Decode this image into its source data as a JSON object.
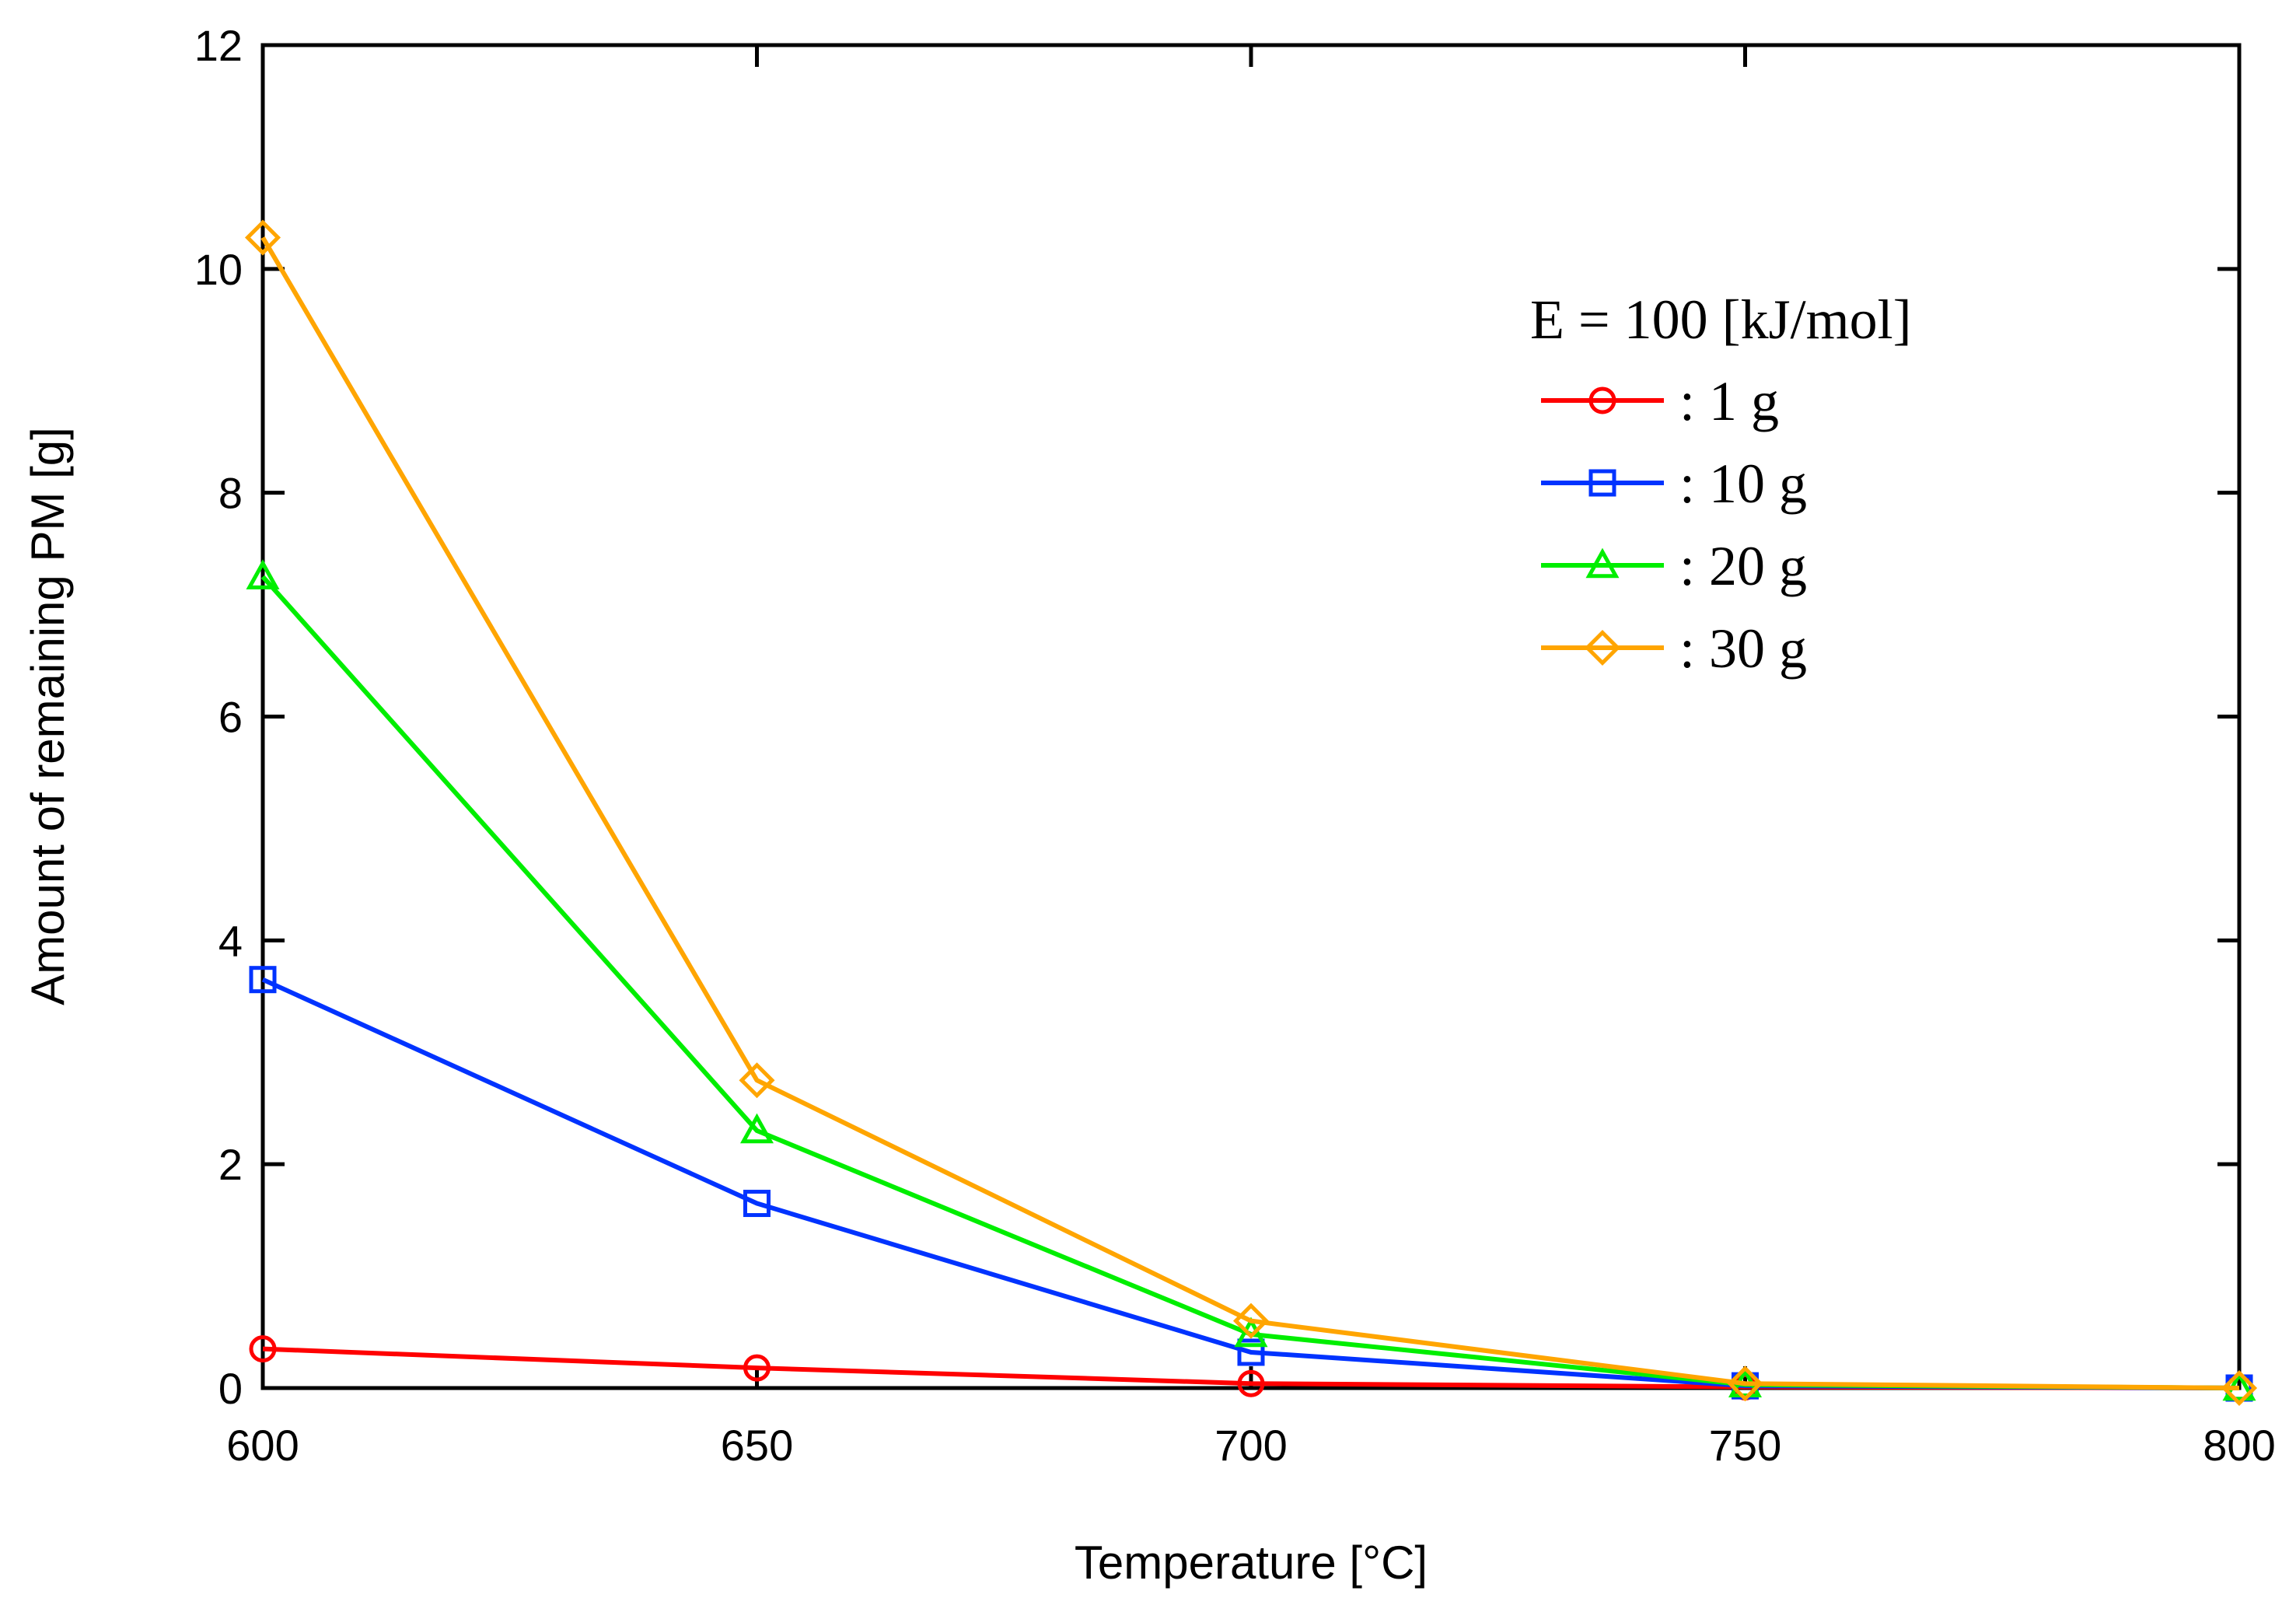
{
  "chart_data": {
    "type": "line",
    "title": "",
    "xlabel": "Temperature [°C]",
    "ylabel": "Amount of remaining PM [g]",
    "xlim": [
      600,
      800
    ],
    "ylim": [
      0,
      12
    ],
    "x_ticks": [
      600,
      650,
      700,
      750,
      800
    ],
    "y_ticks": [
      0,
      2,
      4,
      6,
      8,
      10,
      12
    ],
    "x_tick_labels": [
      "600",
      "650",
      "700",
      "750",
      "800"
    ],
    "y_tick_labels": [
      "0",
      "2",
      "4",
      "6",
      "8",
      "10",
      "12"
    ],
    "grid": false,
    "legend_title": "E = 100 [kJ/mol]",
    "legend_position": "top-right",
    "x": [
      600,
      650,
      700,
      750,
      800
    ],
    "series": [
      {
        "name": ": 1 g",
        "color": "#ff0000",
        "marker": "circle",
        "values": [
          0.35,
          0.18,
          0.04,
          0.01,
          0.0
        ]
      },
      {
        "name": ": 10 g",
        "color": "#0033ff",
        "marker": "square",
        "values": [
          3.65,
          1.65,
          0.32,
          0.02,
          0.0
        ]
      },
      {
        "name": ": 20 g",
        "color": "#00ee00",
        "marker": "triangle",
        "values": [
          7.25,
          2.3,
          0.48,
          0.03,
          0.0
        ]
      },
      {
        "name": ": 30 g",
        "color": "#ffa500",
        "marker": "diamond",
        "values": [
          10.28,
          2.75,
          0.6,
          0.04,
          0.0
        ]
      }
    ]
  }
}
